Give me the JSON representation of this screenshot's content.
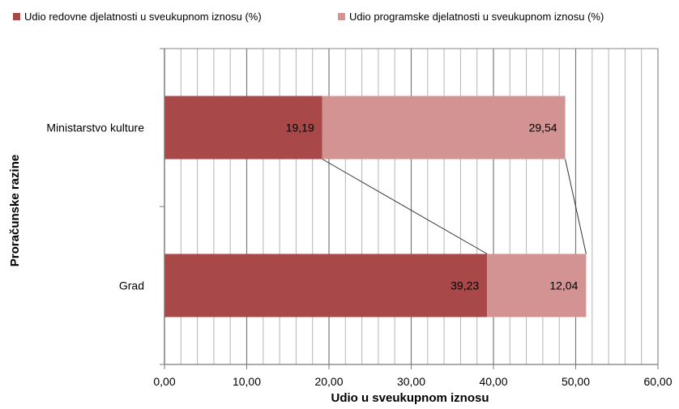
{
  "chart_data": {
    "type": "bar",
    "orientation": "horizontal",
    "stacked": true,
    "categories": [
      "Ministarstvo kulture",
      "Grad"
    ],
    "series": [
      {
        "name": "Udio redovne djelatnosti u sveukupnom iznosu  (%)",
        "color": "#a84848",
        "values": [
          19.19,
          39.23
        ]
      },
      {
        "name": "Udio programske djelatnosti u sveukupnom iznosu (%)",
        "color": "#d39393",
        "values": [
          29.54,
          12.04
        ]
      }
    ],
    "data_labels": [
      [
        "19,19",
        "29,54"
      ],
      [
        "39,23",
        "12,04"
      ]
    ],
    "xlabel": "Udio u sveukupnom iznosu",
    "ylabel": "Proračunske razine",
    "xlim": [
      0,
      60
    ],
    "xticks": [
      0,
      10,
      20,
      30,
      40,
      50,
      60
    ],
    "xtick_labels": [
      "0,00",
      "10,00",
      "20,00",
      "30,00",
      "40,00",
      "50,00",
      "60,00"
    ],
    "grid": true,
    "series_lines": true,
    "legend_position": "top"
  }
}
